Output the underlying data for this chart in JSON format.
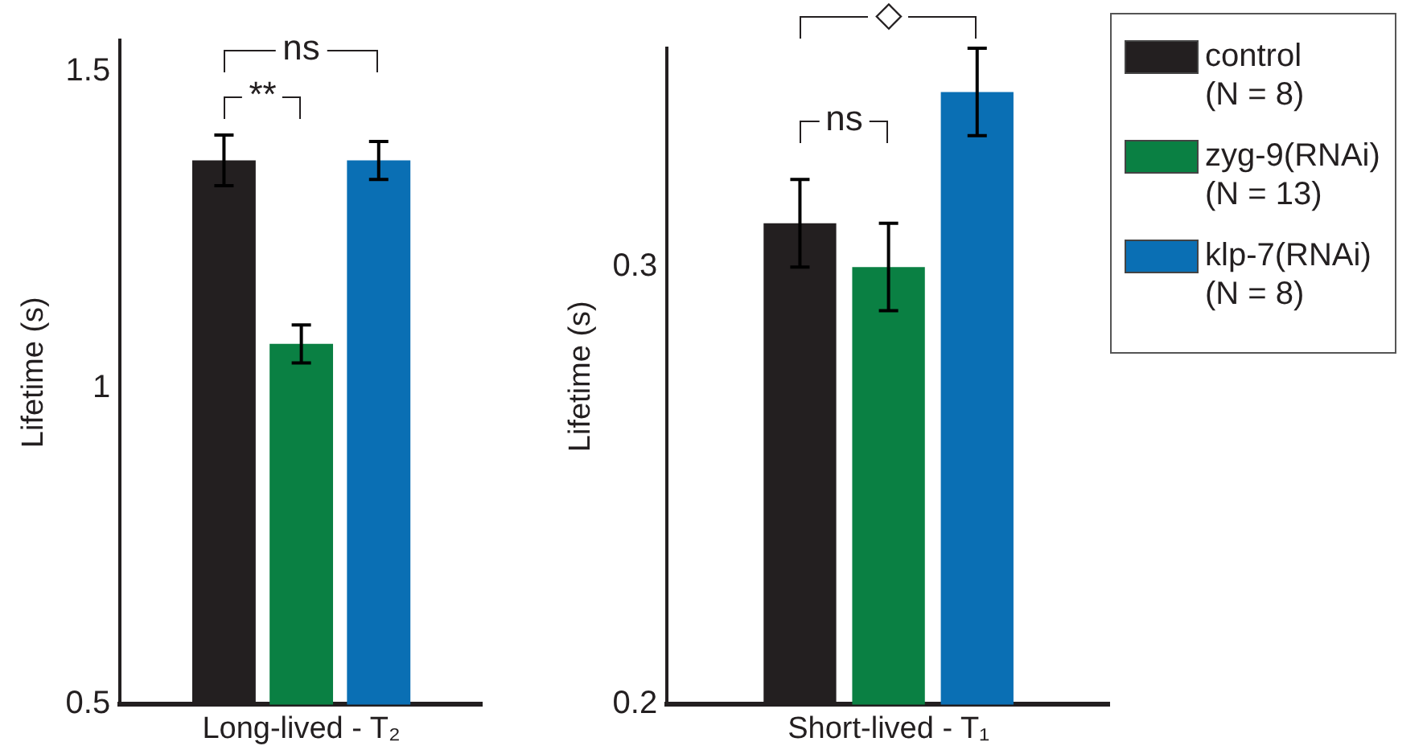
{
  "chart_data": [
    {
      "type": "bar",
      "ylabel": "Lifetime (s)",
      "categories": [
        "Long-lived - T₂"
      ],
      "ylim": [
        0.5,
        1.55
      ],
      "yticks": [
        0.5,
        1,
        1.5
      ],
      "grid": false,
      "legend": false,
      "annotations": [
        "ns",
        "**"
      ],
      "series": [
        {
          "color": "#231f20",
          "values": [
            1.36
          ],
          "errors": [
            0.04
          ]
        },
        {
          "color": "#0a8043",
          "values": [
            1.07
          ],
          "errors": [
            0.03
          ]
        },
        {
          "color": "#0a6fb4",
          "values": [
            1.36
          ],
          "errors": [
            0.03
          ]
        }
      ]
    },
    {
      "type": "bar",
      "ylabel": "Lifetime (s)",
      "categories": [
        "Short-lived - T₁"
      ],
      "ylim": [
        0.2,
        0.35
      ],
      "yticks": [
        0.2,
        0.3
      ],
      "grid": false,
      "legend": "right",
      "annotations": [
        "◇",
        "ns"
      ],
      "series": [
        {
          "name": "control (N = 8)",
          "color": "#231f20",
          "values": [
            0.31
          ],
          "errors": [
            0.01
          ]
        },
        {
          "name": "zyg-9(RNAi) (N = 13)",
          "color": "#0a8043",
          "values": [
            0.3
          ],
          "errors": [
            0.01
          ]
        },
        {
          "name": "klp-7(RNAi) (N = 8)",
          "color": "#0a6fb4",
          "values": [
            0.34
          ],
          "errors": [
            0.01
          ]
        }
      ]
    }
  ]
}
